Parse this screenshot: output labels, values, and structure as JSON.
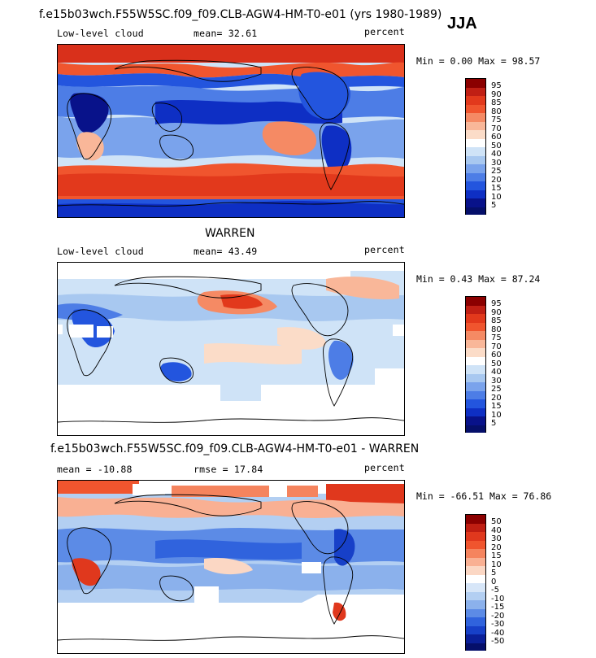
{
  "season": "JJA",
  "panels": [
    {
      "title": "f.e15b03wch.F55W5SC.f09_f09.CLB-AGW4-HM-T0-e01 (yrs 1980-1989)",
      "left_label": "Low-level cloud",
      "mid_label": "mean=  32.61",
      "units": "percent",
      "minmax": "Min =   0.00 Max =  98.57",
      "ticks": [
        "95",
        "90",
        "85",
        "80",
        "75",
        "70",
        "60",
        "50",
        "40",
        "30",
        "25",
        "20",
        "15",
        "10",
        "5"
      ]
    },
    {
      "title": "WARREN",
      "left_label": "Low-level cloud",
      "mid_label": "mean=  43.49",
      "units": "percent",
      "minmax": "Min =   0.43 Max =  87.24",
      "ticks": [
        "95",
        "90",
        "85",
        "80",
        "75",
        "70",
        "60",
        "50",
        "40",
        "30",
        "25",
        "20",
        "15",
        "10",
        "5"
      ]
    },
    {
      "title": "f.e15b03wch.F55W5SC.f09_f09.CLB-AGW4-HM-T0-e01 - WARREN",
      "left_label": "mean = -10.88",
      "mid_label": "rmse =  17.84",
      "units": "percent",
      "minmax": "Min = -66.51 Max =  76.86",
      "ticks": [
        "50",
        "40",
        "30",
        "20",
        "15",
        "10",
        "5",
        "0",
        "-5",
        "-10",
        "-15",
        "-20",
        "-30",
        "-40",
        "-50"
      ]
    }
  ],
  "colors": {
    "abs_scale": [
      "#8b0000",
      "#c01f14",
      "#e2391c",
      "#f0552e",
      "#f58a64",
      "#f9b799",
      "#fbdcc8",
      "#ffffff",
      "#cfe3f7",
      "#a8c8f0",
      "#7aa3ec",
      "#4d7de6",
      "#2355de",
      "#0e2fc4",
      "#08128a",
      "#050f6a"
    ],
    "diff_scale": [
      "#8b0000",
      "#bf1e12",
      "#e0381d",
      "#f0552e",
      "#f5845e",
      "#f9b093",
      "#fbd7c4",
      "#ffffff",
      "#d7e6f8",
      "#b3cff2",
      "#8bb1ec",
      "#5c8be6",
      "#3063dd",
      "#1740c8",
      "#0a1f99",
      "#050f6a"
    ]
  }
}
